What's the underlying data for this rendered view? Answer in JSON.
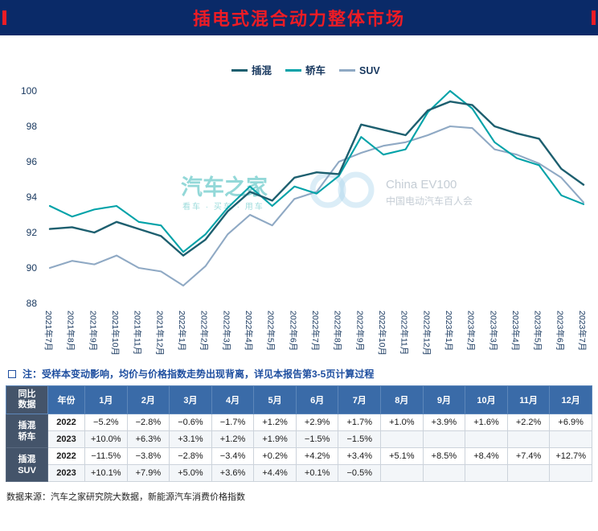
{
  "header": {
    "title": "插电式混合动力整体市场"
  },
  "chart_data": {
    "type": "line",
    "x": [
      "2021年7月",
      "2021年8月",
      "2021年9月",
      "2021年10月",
      "2021年11月",
      "2021年12月",
      "2022年1月",
      "2022年2月",
      "2022年3月",
      "2022年4月",
      "2022年5月",
      "2022年6月",
      "2022年7月",
      "2022年8月",
      "2022年9月",
      "2022年10月",
      "2022年11月",
      "2022年12月",
      "2023年1月",
      "2023年2月",
      "2023年3月",
      "2023年4月",
      "2023年5月",
      "2023年6月",
      "2023年7月"
    ],
    "series": [
      {
        "name": "插混",
        "color": "#1d5f6f",
        "values": [
          92.2,
          92.3,
          92.0,
          92.6,
          92.2,
          91.8,
          90.7,
          91.6,
          93.2,
          94.3,
          93.8,
          95.1,
          95.4,
          95.3,
          98.1,
          97.8,
          97.5,
          98.9,
          99.4,
          99.2,
          98.0,
          97.6,
          97.3,
          95.6,
          94.7
        ]
      },
      {
        "name": "轿车",
        "color": "#00a2a8",
        "values": [
          93.5,
          92.9,
          93.3,
          93.5,
          92.6,
          92.4,
          90.9,
          91.9,
          93.4,
          94.6,
          93.5,
          94.6,
          94.2,
          95.2,
          97.4,
          96.4,
          96.7,
          98.8,
          100.0,
          99.0,
          97.1,
          96.2,
          95.8,
          94.1,
          93.6
        ]
      },
      {
        "name": "SUV",
        "color": "#8fa9c4",
        "values": [
          90.0,
          90.4,
          90.2,
          90.7,
          90.0,
          89.8,
          89.0,
          90.1,
          91.9,
          93.0,
          92.4,
          93.9,
          94.3,
          96.0,
          96.5,
          96.9,
          97.1,
          97.5,
          98.0,
          97.9,
          96.7,
          96.4,
          95.9,
          95.1,
          93.7
        ]
      }
    ],
    "ylim": [
      88,
      100
    ],
    "yticks": [
      88,
      90,
      92,
      94,
      96,
      98,
      100
    ],
    "grid": false,
    "legend_position": "top"
  },
  "watermark": {
    "brand": "汽车之家",
    "brand_sub": "看车 · 买车 · 用车",
    "right_title": "China EV100",
    "right_sub": "中国电动汽车百人会"
  },
  "note": "注：受样本变动影响，均价与价格指数走势出现背离，详见本报告第3-5页计算过程",
  "table": {
    "corner_lines": [
      "同比",
      "数据"
    ],
    "year_header": "年份",
    "months": [
      "1月",
      "2月",
      "3月",
      "4月",
      "5月",
      "6月",
      "7月",
      "8月",
      "9月",
      "10月",
      "11月",
      "12月"
    ],
    "groups": [
      {
        "label_lines": [
          "插混",
          "轿车"
        ],
        "rows": [
          {
            "year": "2022",
            "values": [
              "−5.2%",
              "−2.8%",
              "−0.6%",
              "−1.7%",
              "+1.2%",
              "+2.9%",
              "+1.7%",
              "+1.0%",
              "+3.9%",
              "+1.6%",
              "+2.2%",
              "+6.9%"
            ]
          },
          {
            "year": "2023",
            "values": [
              "+10.0%",
              "+6.3%",
              "+3.1%",
              "+1.2%",
              "+1.9%",
              "−1.5%",
              "−1.5%",
              "",
              "",
              "",
              "",
              ""
            ]
          }
        ]
      },
      {
        "label_lines": [
          "插混",
          "SUV"
        ],
        "rows": [
          {
            "year": "2022",
            "values": [
              "−11.5%",
              "−3.8%",
              "−2.8%",
              "−3.4%",
              "+0.2%",
              "+4.2%",
              "+3.4%",
              "+5.1%",
              "+8.5%",
              "+8.4%",
              "+7.4%",
              "+12.7%"
            ]
          },
          {
            "year": "2023",
            "values": [
              "+10.1%",
              "+7.9%",
              "+5.0%",
              "+3.6%",
              "+4.4%",
              "+0.1%",
              "−0.5%",
              "",
              "",
              "",
              "",
              ""
            ]
          }
        ]
      }
    ]
  },
  "source": "数据来源：汽车之家研究院大数据，新能源汽车消费价格指数"
}
